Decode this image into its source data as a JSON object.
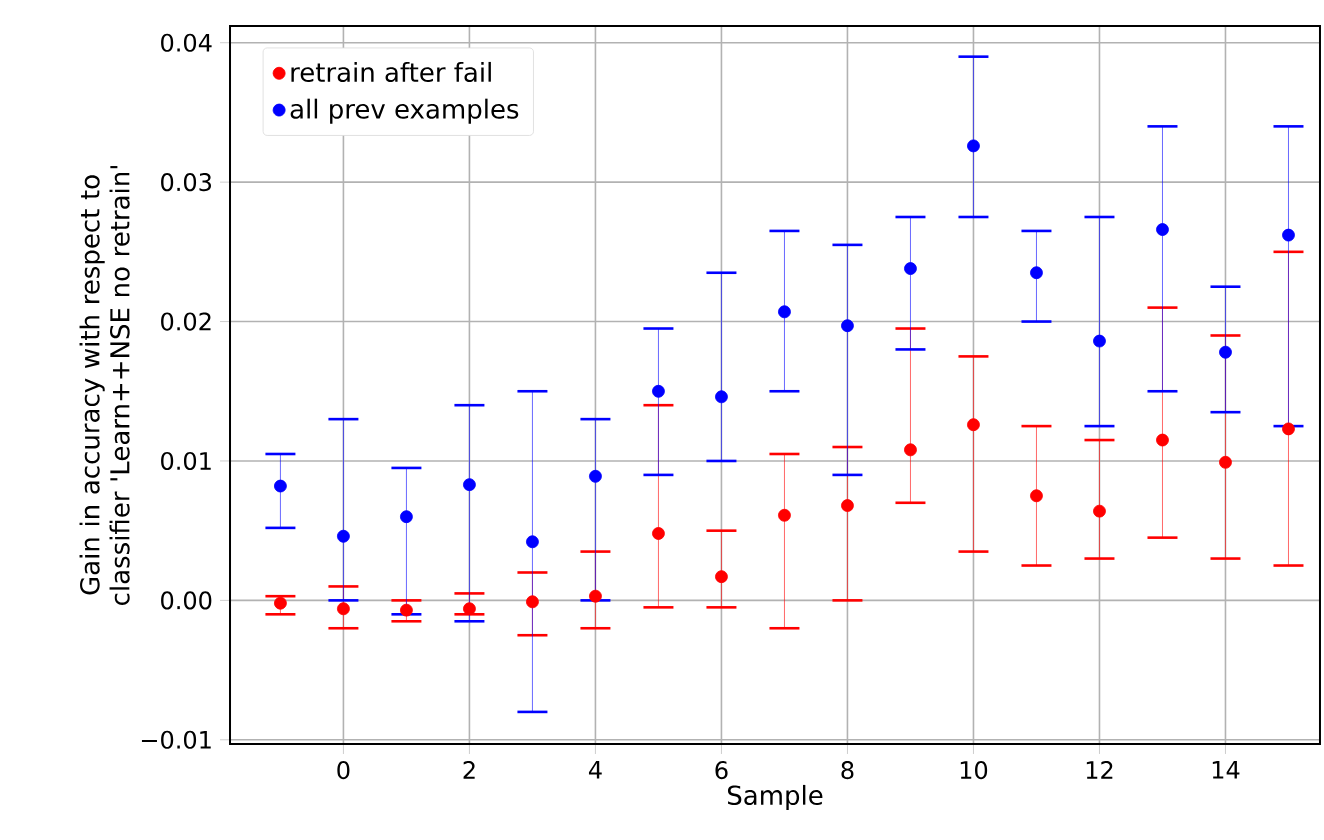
{
  "chart_data": {
    "type": "scatter",
    "xlabel": "Sample",
    "ylabel": "Gain in accuracy with respect to classifier 'Learn++NSE no retrain'",
    "x": [
      -1,
      0,
      1,
      2,
      3,
      4,
      5,
      6,
      7,
      8,
      9,
      10,
      11,
      12,
      13,
      14,
      15
    ],
    "xlim": [
      -1.8,
      15.5
    ],
    "xticks": [
      0,
      2,
      4,
      6,
      8,
      10,
      12,
      14
    ],
    "ylim": [
      -0.0103,
      0.0412
    ],
    "yticks": [
      {
        "value": -0.01,
        "label": "−0.01"
      },
      {
        "value": 0,
        "label": "0.00"
      },
      {
        "value": 0.01,
        "label": "0.01"
      },
      {
        "value": 0.02,
        "label": "0.02"
      },
      {
        "value": 0.03,
        "label": "0.03"
      },
      {
        "value": 0.04,
        "label": "0.04"
      }
    ],
    "grid": true,
    "legend": "top left",
    "marker": "circle",
    "series": [
      {
        "name": "retrain after fail",
        "color": "#ff0000",
        "values": [
          -0.0002,
          -0.0006,
          -0.0007,
          -0.0006,
          -0.0001,
          0.0003,
          0.0048,
          0.0017,
          0.0061,
          0.0068,
          0.0108,
          0.0126,
          0.0075,
          0.0064,
          0.0115,
          0.0099,
          0.0123
        ],
        "errors": [
          [
            -0.001,
            0.0003
          ],
          [
            -0.002,
            0.001
          ],
          [
            -0.0015,
            0.0
          ],
          [
            -0.001,
            0.0005
          ],
          [
            -0.0025,
            0.002
          ],
          [
            -0.002,
            0.0035
          ],
          [
            -0.0005,
            0.014
          ],
          [
            -0.0005,
            0.005
          ],
          [
            -0.002,
            0.0105
          ],
          [
            0.0,
            0.011
          ],
          [
            0.007,
            0.0195
          ],
          [
            0.0035,
            0.0175
          ],
          [
            0.0025,
            0.0125
          ],
          [
            0.003,
            0.0115
          ],
          [
            0.0045,
            0.021
          ],
          [
            0.003,
            0.019
          ],
          [
            0.0025,
            0.025
          ]
        ]
      },
      {
        "name": "all prev examples",
        "color": "#0000ff",
        "values": [
          0.0082,
          0.0046,
          0.006,
          0.0083,
          0.0042,
          0.0089,
          0.015,
          0.0146,
          0.0207,
          0.0197,
          0.0238,
          0.0326,
          0.0235,
          0.0186,
          0.0266,
          0.0178,
          0.0262
        ],
        "errors": [
          [
            0.0052,
            0.0105
          ],
          [
            0.0,
            0.013
          ],
          [
            -0.001,
            0.0095
          ],
          [
            -0.0015,
            0.014
          ],
          [
            -0.008,
            0.015
          ],
          [
            0.0,
            0.013
          ],
          [
            0.009,
            0.0195
          ],
          [
            0.01,
            0.0235
          ],
          [
            0.015,
            0.0265
          ],
          [
            0.009,
            0.0255
          ],
          [
            0.018,
            0.0275
          ],
          [
            0.0275,
            0.039
          ],
          [
            0.02,
            0.0265
          ],
          [
            0.0125,
            0.0275
          ],
          [
            0.015,
            0.034
          ],
          [
            0.0135,
            0.0225
          ],
          [
            0.0125,
            0.034
          ]
        ]
      }
    ]
  }
}
